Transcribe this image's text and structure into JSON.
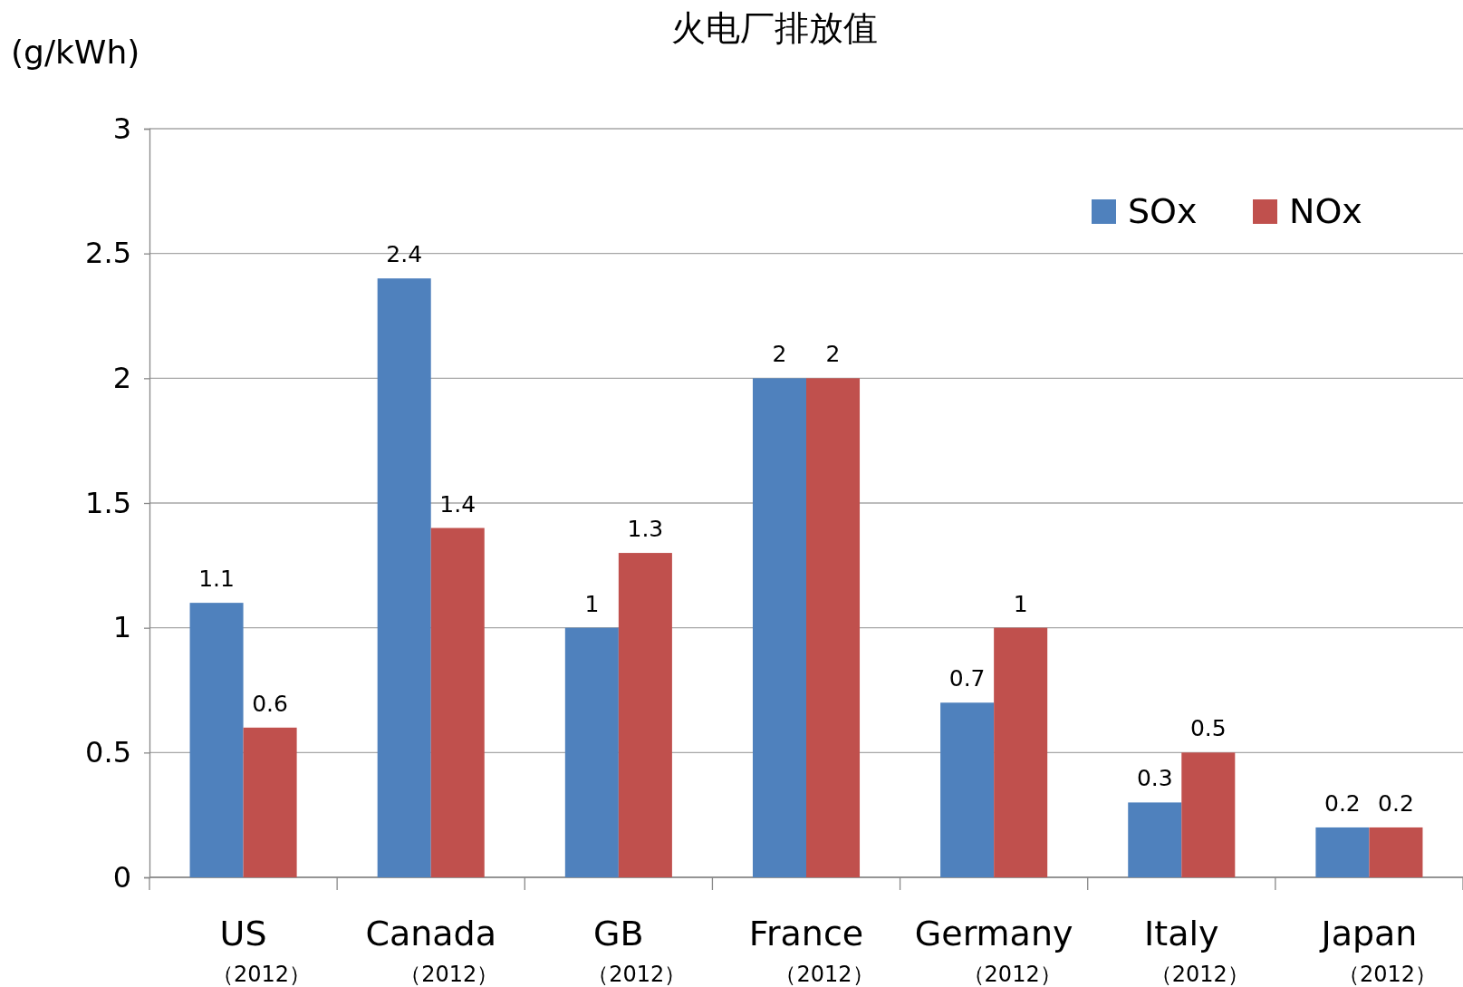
{
  "chart_data": {
    "type": "bar",
    "title": "火电厂排放值",
    "ylabel": "(g/kWh)",
    "categories": [
      "US\n（2012）",
      "Canada\n（2012）",
      "GB\n（2012）",
      "France\n（2012）",
      "Germany\n（2012）",
      "Italy\n（2012）",
      "Japan\n（2012）"
    ],
    "series": [
      {
        "name": "SOx",
        "color": "#4f81bd",
        "values": [
          1.1,
          2.4,
          1,
          2,
          0.7,
          0.3,
          0.2
        ]
      },
      {
        "name": "NOx",
        "color": "#c0504d",
        "values": [
          0.6,
          1.4,
          1.3,
          2,
          1,
          0.5,
          0.2
        ]
      }
    ],
    "ylim": [
      0,
      3
    ],
    "yticks": [
      0,
      0.5,
      1,
      1.5,
      2,
      2.5,
      3
    ],
    "grid": "y",
    "legend": "top right",
    "data_labels": true
  }
}
